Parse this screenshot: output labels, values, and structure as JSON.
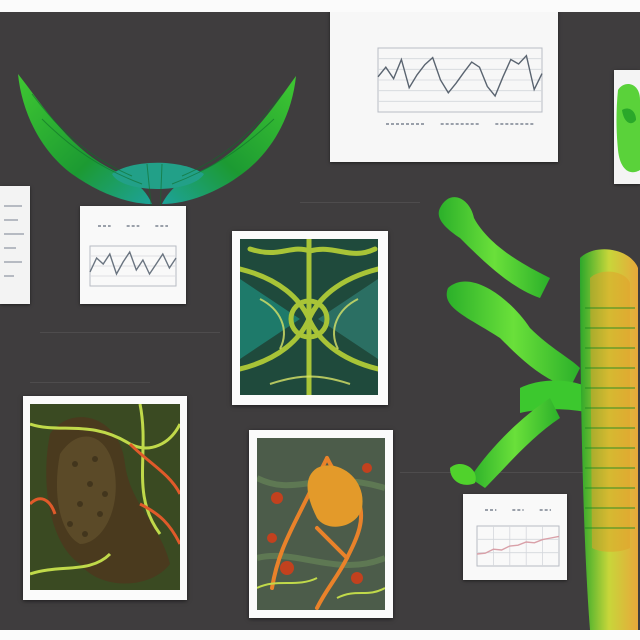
{
  "board": {
    "background": "#3f3d3e",
    "accent_green": "#55d92a",
    "accent_orange": "#e9822a"
  },
  "images": {
    "wing_sculpture": "green-wing-sculpture",
    "branching_sculpture": "green-branching-sculpture",
    "corner_sculpture": "green-corner-sculpture"
  },
  "photos": [
    {
      "name": "green-lattice-photo"
    },
    {
      "name": "bark-and-vines-photo"
    },
    {
      "name": "orange-network-photo"
    }
  ],
  "charts": [
    {
      "name": "main-line-chart",
      "type": "line",
      "y": [
        0.55,
        0.7,
        0.52,
        0.82,
        0.38,
        0.58,
        0.74,
        0.85,
        0.5,
        0.3,
        0.45,
        0.62,
        0.78,
        0.7,
        0.4,
        0.25,
        0.55,
        0.82,
        0.75,
        0.88,
        0.35,
        0.6
      ],
      "grid": true,
      "color": "#5a6470"
    },
    {
      "name": "small-line-chart",
      "type": "line",
      "y": [
        0.35,
        0.7,
        0.55,
        0.8,
        0.3,
        0.6,
        0.85,
        0.4,
        0.65,
        0.3,
        0.55,
        0.8,
        0.45,
        0.7
      ],
      "grid": true,
      "color": "#6a7480"
    },
    {
      "name": "pink-line-chart",
      "type": "line",
      "y": [
        0.3,
        0.32,
        0.42,
        0.4,
        0.5,
        0.52,
        0.6,
        0.58,
        0.66,
        0.7,
        0.74
      ],
      "grid": true,
      "color": "#d9a0a8"
    }
  ]
}
